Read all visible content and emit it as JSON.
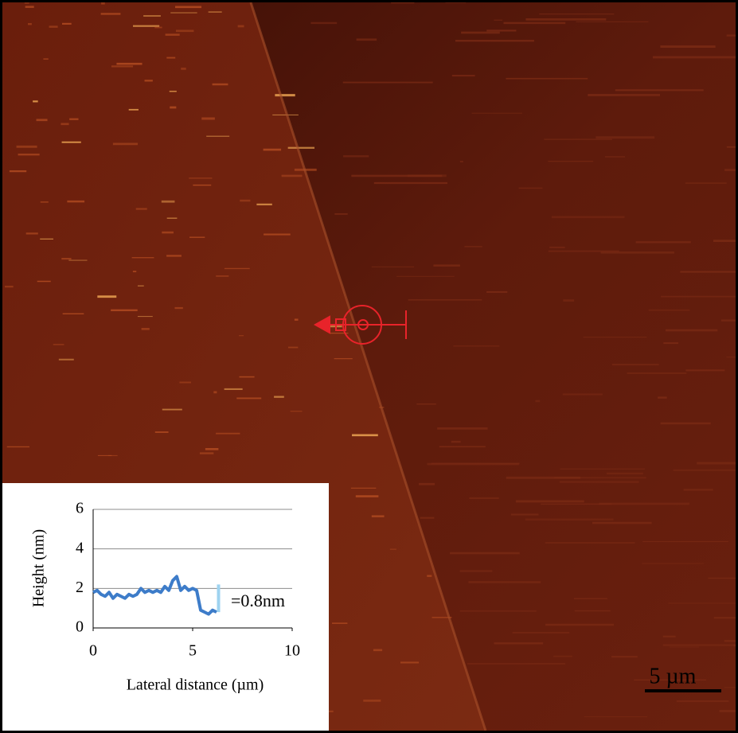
{
  "chart_data": {
    "type": "line",
    "xlabel": "Lateral distance (µm)",
    "ylabel": "Height (nm)",
    "x": [
      0,
      0.2,
      0.4,
      0.6,
      0.8,
      1.0,
      1.2,
      1.4,
      1.6,
      1.8,
      2.0,
      2.2,
      2.4,
      2.6,
      2.8,
      3.0,
      3.2,
      3.4,
      3.6,
      3.8,
      4.0,
      4.2,
      4.4,
      4.6,
      4.8,
      5.0,
      5.2,
      5.4,
      5.6,
      5.8,
      6.0,
      6.2
    ],
    "series": [
      {
        "color": "#3d7cc9",
        "values": [
          1.8,
          1.9,
          1.7,
          1.6,
          1.8,
          1.5,
          1.7,
          1.6,
          1.5,
          1.7,
          1.6,
          1.7,
          2.0,
          1.8,
          1.9,
          1.8,
          1.9,
          1.8,
          2.1,
          1.9,
          2.4,
          2.6,
          1.9,
          2.1,
          1.9,
          2.0,
          1.9,
          0.9,
          0.8,
          0.7,
          0.9,
          0.8
        ]
      }
    ],
    "step_marker": {
      "x": 6.3,
      "y": [
        0.8,
        2.2
      ],
      "color": "#9ed3f0"
    },
    "annotation": "=0.8nm",
    "xlim": [
      0,
      10
    ],
    "xticks": [
      0,
      5,
      10
    ],
    "ylim": [
      0,
      6
    ],
    "yticks": [
      0,
      2,
      4,
      6
    ],
    "grid": true,
    "scale_bar": "5 µm"
  }
}
